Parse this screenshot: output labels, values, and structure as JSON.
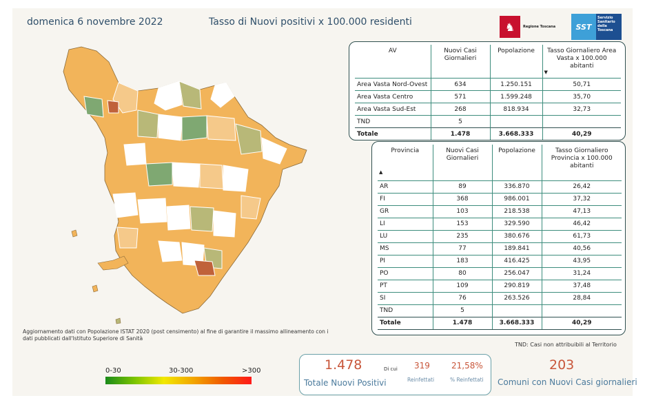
{
  "header": {
    "date": "domenica 6 novembre 2022",
    "title": "Tasso di Nuovi positivi x 100.000 residenti"
  },
  "logos": {
    "regione": "Regione Toscana",
    "sst_mark": "SST",
    "sst_text": "Servizio Sanitario della Toscana"
  },
  "av_table": {
    "headers": [
      "AV",
      "Nuovi Casi Giornalieri",
      "Popolazione",
      "Tasso Giornaliero Area Vasta x 100.000 abitanti"
    ],
    "rows": [
      [
        "Area Vasta Nord-Ovest",
        "634",
        "1.250.151",
        "50,71"
      ],
      [
        "Area Vasta Centro",
        "571",
        "1.599.248",
        "35,70"
      ],
      [
        "Area Vasta Sud-Est",
        "268",
        "818.934",
        "32,73"
      ],
      [
        "TND",
        "5",
        "",
        ""
      ]
    ],
    "total": [
      "Totale",
      "1.478",
      "3.668.333",
      "40,29"
    ]
  },
  "prov_table": {
    "headers": [
      "Provincia",
      "Nuovi Casi Giornalieri",
      "Popolazione",
      "Tasso Giornaliero Provincia x 100.000 abitanti"
    ],
    "rows": [
      [
        "AR",
        "89",
        "336.870",
        "26,42"
      ],
      [
        "FI",
        "368",
        "986.001",
        "37,32"
      ],
      [
        "GR",
        "103",
        "218.538",
        "47,13"
      ],
      [
        "LI",
        "153",
        "329.590",
        "46,42"
      ],
      [
        "LU",
        "235",
        "380.676",
        "61,73"
      ],
      [
        "MS",
        "77",
        "189.841",
        "40,56"
      ],
      [
        "PI",
        "183",
        "416.425",
        "43,95"
      ],
      [
        "PO",
        "80",
        "256.047",
        "31,24"
      ],
      [
        "PT",
        "109",
        "290.819",
        "37,48"
      ],
      [
        "SI",
        "76",
        "263.526",
        "28,84"
      ],
      [
        "TND",
        "5",
        "",
        ""
      ]
    ],
    "total": [
      "Totale",
      "1.478",
      "3.668.333",
      "40,29"
    ]
  },
  "notes": {
    "update": "Aggiornamento dati con Popolazione ISTAT 2020 (post censimento) al fine di garantire il massimo allineamento con i dati pubblicati dall'Istituto Superiore di Sanità",
    "tnd": "TND:  Casi non attribuibili al Territorio"
  },
  "legend": {
    "low": "0-30",
    "mid": "30-300",
    "high": ">300",
    "colors": [
      "#1a8a1a",
      "#7cc400",
      "#f2e800",
      "#f2a600",
      "#f05a00",
      "#ff1a1a"
    ]
  },
  "kpi": {
    "total_value": "1.478",
    "total_label": "Totale Nuovi Positivi",
    "di_cui": "Di cui",
    "reinf_value": "319",
    "reinf_label": "Reinfettati",
    "pct_value": "21,58%",
    "pct_label": "% Reinfettati",
    "comuni_value": "203",
    "comuni_label": "Comuni con Nuovi Casi giornalieri"
  },
  "map_colors": {
    "orange": "#f2b45a",
    "light_orange": "#f5c98a",
    "olive": "#b8b878",
    "green": "#7fa872",
    "dark": "#c0623a",
    "none": "#ffffff"
  }
}
